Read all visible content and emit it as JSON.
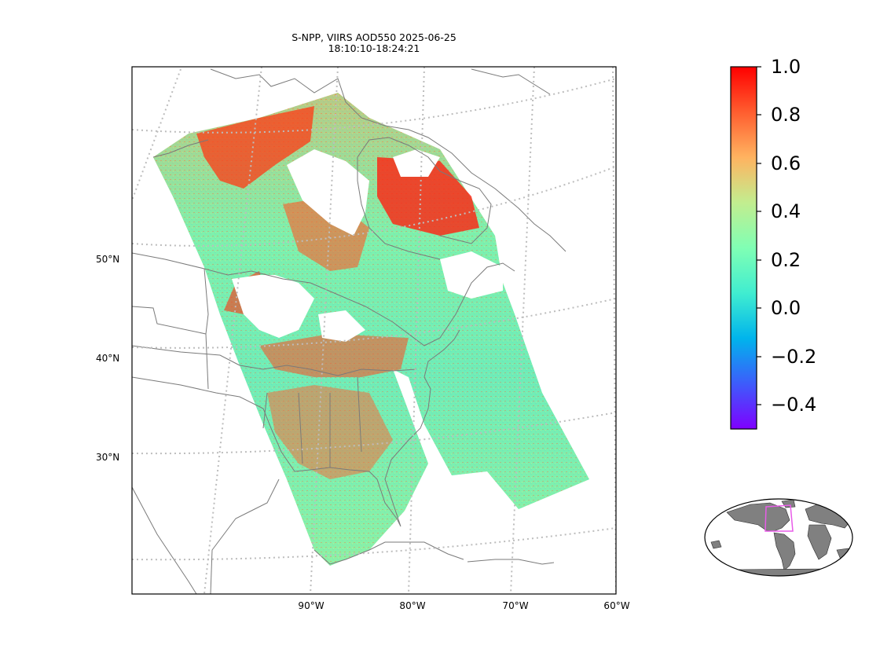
{
  "title": {
    "line1": "S-NPP, VIIRS AOD550 2025-06-25",
    "line2": "18:10:10-18:24:21"
  },
  "lat_labels": [
    "50°N",
    "40°N",
    "30°N"
  ],
  "lon_labels": [
    "90°W",
    "80°W",
    "70°W",
    "60°W"
  ],
  "colorbar": {
    "colormap": "rainbow",
    "range": [
      -0.5,
      1.0
    ],
    "tick_labels": [
      "1.0",
      "0.8",
      "0.6",
      "0.4",
      "0.2",
      "0.0",
      "−0.2",
      "−0.4"
    ],
    "colors": [
      "#7f00ff",
      "#3d5cfb",
      "#00b4ec",
      "#40edd0",
      "#80ffb4",
      "#c2ed8f",
      "#ffb360",
      "#ff5d2f",
      "#ff0000"
    ]
  },
  "inset": {
    "land_color": "#808080",
    "box_color": "#e85ce8"
  }
}
